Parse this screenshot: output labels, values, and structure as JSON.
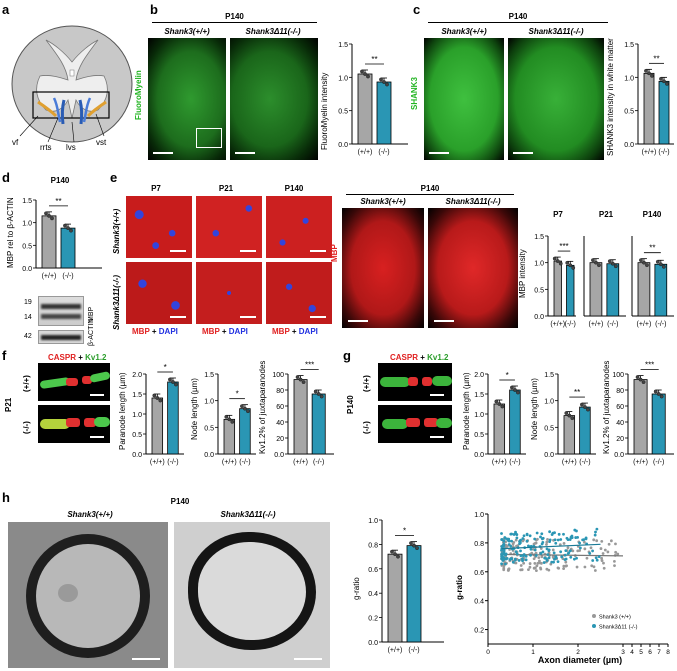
{
  "colors": {
    "wildtype_bar": "#a6a6a6",
    "mutant_bar": "#2a96b4",
    "fluoro_green": "#22b422",
    "mbp_red": "#e02020",
    "dapi_blue": "#2030e0",
    "kv_green": "#2a9d2a"
  },
  "panel_labels": {
    "a": "a",
    "b": "b",
    "c": "c",
    "d": "d",
    "e": "e",
    "f": "f",
    "g": "g",
    "h": "h"
  },
  "geno": {
    "wt": "Shank3(+/+)",
    "ko": "Shank3Δ11(-/-)",
    "wt_short": "(+/+)",
    "ko_short": "(-/-)"
  },
  "panel_a": {
    "labels": {
      "vf": "vf",
      "rrts": "rrts",
      "lvs": "lvs",
      "vst": "vst"
    }
  },
  "panel_b": {
    "age": "P140",
    "stain": "FluoroMyelin",
    "ylabel": "FluoroMyelin intensity",
    "sig": "**"
  },
  "panel_c": {
    "age": "P140",
    "stain": "SHANK3",
    "ylabel": "SHANK3 intensity in white matter",
    "sig": "**"
  },
  "panel_d": {
    "age": "P140",
    "ylabel": "MBP rel to β-ACTIN",
    "sig": "**",
    "blot": {
      "mw_19": "19",
      "mw_14": "14",
      "mw_42": "42",
      "mbp": "MBP",
      "actin": "β-ACTIN"
    }
  },
  "panel_e": {
    "ages": [
      "P7",
      "P21",
      "P140"
    ],
    "age_p140": "P140",
    "stain_mbp": "MBP",
    "stain_plus": "+",
    "stain_dapi": "DAPI",
    "ylabel": "MBP intensity",
    "sigs": [
      "***",
      "",
      "**"
    ]
  },
  "panel_f": {
    "age": "P21",
    "stain_caspr": "CASPR",
    "stain_plus": "+",
    "stain_kv": "Kv1.2",
    "ylabels": [
      "Paranode length (µm)",
      "Node length (µm)",
      "Kv1.2% of juxtaparanodes"
    ],
    "sigs": [
      "*",
      "*",
      "***"
    ]
  },
  "panel_g": {
    "age": "P140",
    "stain_caspr": "CASPR",
    "stain_plus": "+",
    "stain_kv": "Kv1.2",
    "ylabels": [
      "Paranode length (µm)",
      "Node length (µm)",
      "Kv1.2% of juxtaparanodes"
    ],
    "sigs": [
      "*",
      "**",
      "***"
    ]
  },
  "panel_h": {
    "age": "P140",
    "ylabel": "g-ratio",
    "sig": "*",
    "scatter_xlabel": "Axon diameter (µm)",
    "scatter_ylabel": "g-ratio",
    "legend_wt": "Shank3 (+/+)",
    "legend_ko": "Shank3Δ11 (-/-)"
  },
  "chart_data": [
    {
      "type": "bar",
      "panel": "b",
      "categories": [
        "(+/+)",
        "(-/-)"
      ],
      "values": [
        1.05,
        0.93
      ],
      "ylabel": "FluoroMyelin intensity",
      "ylim": [
        0,
        1.5
      ],
      "yticks": [
        0.0,
        0.5,
        1.0,
        1.5
      ]
    },
    {
      "type": "bar",
      "panel": "c",
      "categories": [
        "(+/+)",
        "(-/-)"
      ],
      "values": [
        1.06,
        0.94
      ],
      "ylabel": "SHANK3 intensity in white matter",
      "ylim": [
        0,
        1.5
      ],
      "yticks": [
        0.0,
        0.5,
        1.0,
        1.5
      ]
    },
    {
      "type": "bar",
      "panel": "d",
      "categories": [
        "(+/+)",
        "(-/-)"
      ],
      "values": [
        1.15,
        0.88
      ],
      "ylabel": "MBP rel to β-ACTIN",
      "ylim": [
        0,
        1.5
      ],
      "yticks": [
        0.0,
        0.5,
        1.0,
        1.5
      ]
    },
    {
      "type": "bar",
      "panel": "e",
      "title": "P7",
      "categories": [
        "(+/+)",
        "(-/-)"
      ],
      "values": [
        1.03,
        0.95
      ],
      "ylabel": "MBP intensity",
      "ylim": [
        0,
        1.5
      ],
      "yticks": [
        0.0,
        0.5,
        1.0,
        1.5
      ]
    },
    {
      "type": "bar",
      "panel": "e",
      "title": "P21",
      "categories": [
        "(+/+)",
        "(-/-)"
      ],
      "values": [
        1.0,
        0.98
      ],
      "ylim": [
        0,
        1.5
      ]
    },
    {
      "type": "bar",
      "panel": "e",
      "title": "P140",
      "categories": [
        "(+/+)",
        "(-/-)"
      ],
      "values": [
        1.0,
        0.97
      ],
      "ylim": [
        0,
        1.5
      ]
    },
    {
      "type": "bar",
      "panel": "f",
      "categories": [
        "(+/+)",
        "(-/-)"
      ],
      "values": [
        1.4,
        1.8
      ],
      "ylabel": "Paranode length (µm)",
      "ylim": [
        0,
        2.0
      ],
      "yticks": [
        0.0,
        0.5,
        1.0,
        1.5,
        2.0
      ]
    },
    {
      "type": "bar",
      "panel": "f",
      "categories": [
        "(+/+)",
        "(-/-)"
      ],
      "values": [
        0.65,
        0.85
      ],
      "ylabel": "Node length (µm)",
      "ylim": [
        0,
        1.5
      ],
      "yticks": [
        0.0,
        0.5,
        1.0,
        1.5
      ]
    },
    {
      "type": "bar",
      "panel": "f",
      "categories": [
        "(+/+)",
        "(-/-)"
      ],
      "values": [
        93,
        75
      ],
      "ylabel": "Kv1.2% of juxtaparanodes",
      "ylim": [
        0,
        100
      ],
      "yticks": [
        0,
        20,
        40,
        60,
        80,
        100
      ]
    },
    {
      "type": "bar",
      "panel": "g",
      "categories": [
        "(+/+)",
        "(-/-)"
      ],
      "values": [
        1.25,
        1.6
      ],
      "ylabel": "Paranode length (µm)",
      "ylim": [
        0,
        2.0
      ],
      "yticks": [
        0.0,
        0.5,
        1.0,
        1.5,
        2.0
      ]
    },
    {
      "type": "bar",
      "panel": "g",
      "categories": [
        "(+/+)",
        "(-/-)"
      ],
      "values": [
        0.72,
        0.88
      ],
      "ylabel": "Node length (µm)",
      "ylim": [
        0,
        1.5
      ],
      "yticks": [
        0.0,
        0.5,
        1.0,
        1.5
      ]
    },
    {
      "type": "bar",
      "panel": "g",
      "categories": [
        "(+/+)",
        "(-/-)"
      ],
      "values": [
        93,
        75
      ],
      "ylabel": "Kv1.2% of juxtaparanodes",
      "ylim": [
        0,
        100
      ],
      "yticks": [
        0,
        20,
        40,
        60,
        80,
        100
      ]
    },
    {
      "type": "bar",
      "panel": "h",
      "categories": [
        "(+/+)",
        "(-/-)"
      ],
      "values": [
        0.72,
        0.79
      ],
      "ylabel": "g-ratio",
      "ylim": [
        0,
        1.0
      ],
      "yticks": [
        0.0,
        0.2,
        0.4,
        0.6,
        0.8,
        1.0
      ]
    },
    {
      "type": "scatter",
      "panel": "h",
      "xlabel": "Axon diameter (µm)",
      "ylabel": "g-ratio",
      "xticks": [
        "0",
        "1",
        "2",
        "3",
        "4",
        "5",
        "6",
        "7",
        "8"
      ],
      "yticks": [
        0.2,
        0.4,
        0.6,
        0.8,
        1.0
      ],
      "series": [
        {
          "name": "Shank3 (+/+)",
          "fit": [
            [
              0.3,
              0.72
            ],
            [
              3.0,
              0.71
            ]
          ],
          "cloud": {
            "x": [
              0.3,
              3.0
            ],
            "y": [
              0.45,
              0.9
            ]
          }
        },
        {
          "name": "Shank3Δ11 (-/-)",
          "fit": [
            [
              0.3,
              0.76
            ],
            [
              2.5,
              0.79
            ]
          ],
          "cloud": {
            "x": [
              0.3,
              2.5
            ],
            "y": [
              0.55,
              1.0
            ]
          }
        }
      ]
    }
  ]
}
